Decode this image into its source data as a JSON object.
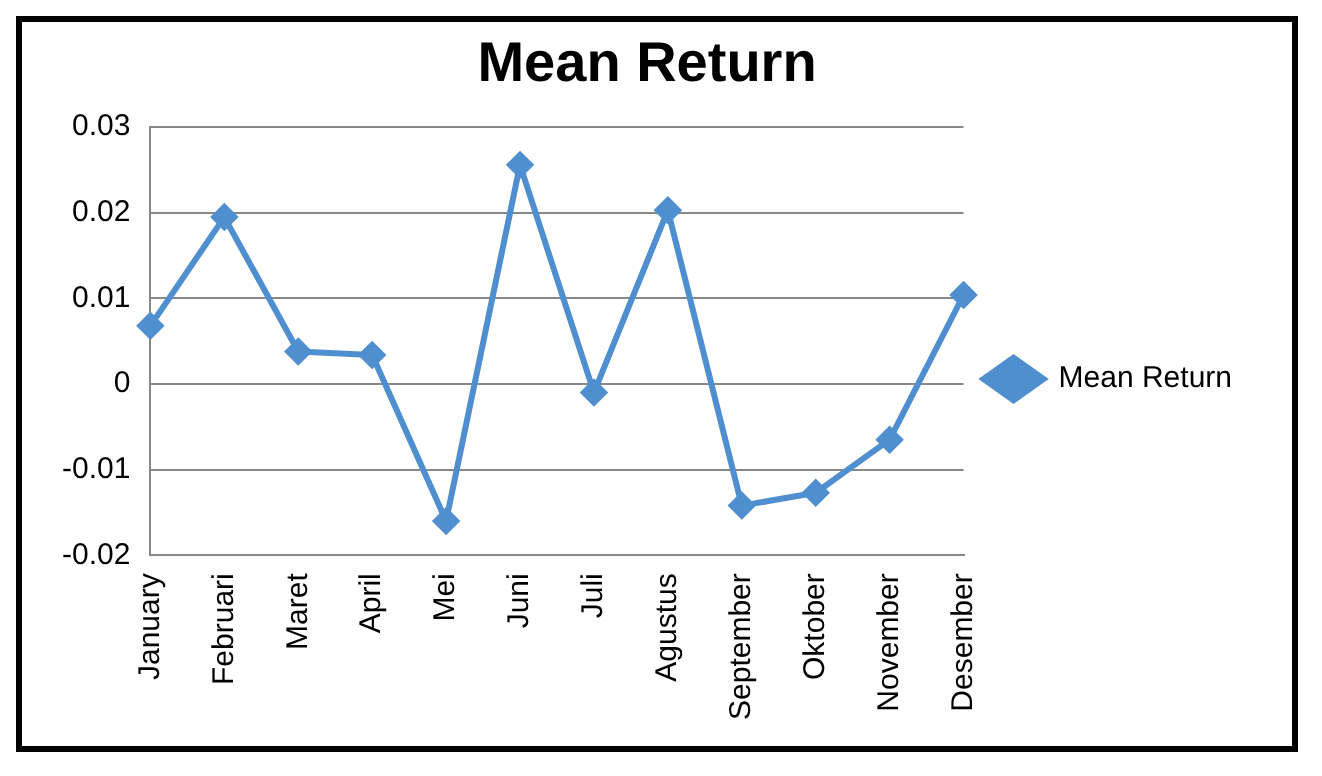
{
  "chart_data": {
    "type": "line",
    "title": "Mean Return",
    "categories": [
      "January",
      "Februari",
      "Maret",
      "April",
      "Mei",
      "Juni",
      "Juli",
      "Agustus",
      "September",
      "Oktober",
      "November",
      "Desember"
    ],
    "series": [
      {
        "name": "Mean Return",
        "color": "#4f8fcf",
        "values": [
          0.0068,
          0.0195,
          0.0038,
          0.0034,
          -0.016,
          0.0256,
          -0.001,
          0.0203,
          -0.0142,
          -0.0127,
          -0.0065,
          0.0104
        ]
      }
    ],
    "ylim": [
      -0.02,
      0.03
    ],
    "yticks": [
      -0.02,
      -0.01,
      0,
      0.01,
      0.02,
      0.03
    ],
    "grid": "y",
    "legend": "right",
    "marker": "diamond",
    "line_style": "solid"
  }
}
